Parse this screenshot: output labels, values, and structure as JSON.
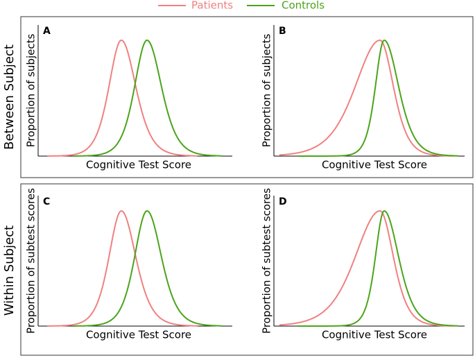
{
  "legend": {
    "items": [
      "Patients",
      "Controls"
    ]
  },
  "rows": [
    {
      "label": "Between Subject"
    },
    {
      "label": "Within Subject"
    }
  ],
  "panels": [
    {
      "letter": "A",
      "ylabel": "Proportion of subjects",
      "xlabel": "Cognitive Test Score"
    },
    {
      "letter": "B",
      "ylabel": "Proportion of subjects",
      "xlabel": "Cognitive Test Score"
    },
    {
      "letter": "C",
      "ylabel": "Proportion of subtest scores",
      "xlabel": "Cognitive Test Score"
    },
    {
      "letter": "D",
      "ylabel": "Proportion of subtest scores",
      "xlabel": "Cognitive Test Score"
    }
  ]
}
